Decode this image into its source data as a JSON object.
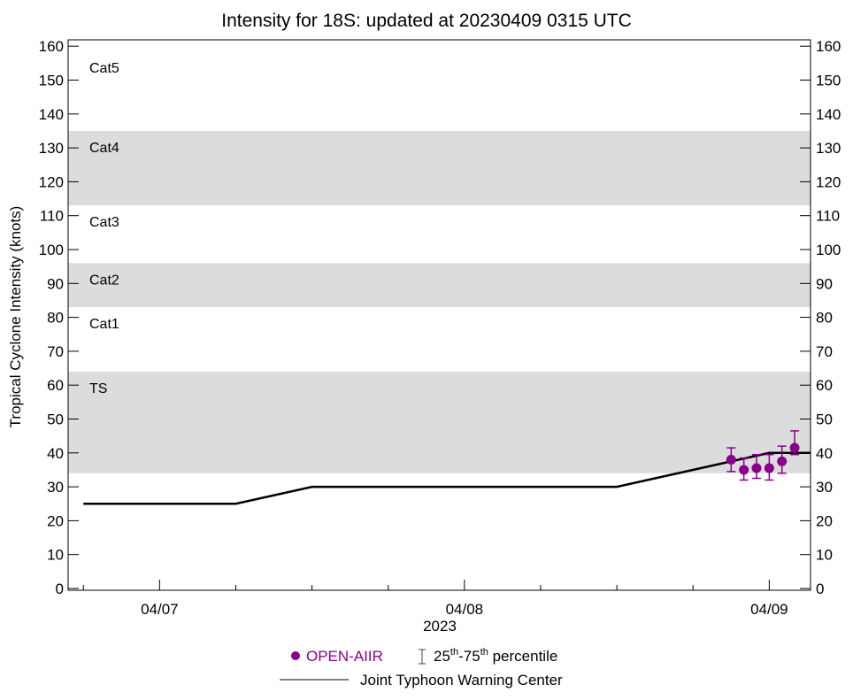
{
  "chart_data": {
    "type": "scatter",
    "title": "Intensity for 18S: updated at 20230409 0315 UTC",
    "ylabel": "Tropical Cyclone Intensity (knots)",
    "xlabel": "2023",
    "ylim": [
      0,
      160
    ],
    "xlim": [
      "2023-04-06T16:48",
      "2023-04-09T03:15"
    ],
    "yticks": [
      0,
      10,
      20,
      30,
      40,
      50,
      60,
      70,
      80,
      90,
      100,
      110,
      120,
      130,
      140,
      150,
      160
    ],
    "xticks": [
      {
        "label": "04/07",
        "t": "2023-04-07T00:00"
      },
      {
        "label": "04/08",
        "t": "2023-04-08T00:00"
      },
      {
        "label": "04/09",
        "t": "2023-04-09T00:00"
      }
    ],
    "bands": [
      {
        "label": "TS",
        "from": 34,
        "to": 64,
        "shaded": true
      },
      {
        "label": "Cat1",
        "from": 64,
        "to": 83,
        "shaded": false
      },
      {
        "label": "Cat2",
        "from": 83,
        "to": 96,
        "shaded": true
      },
      {
        "label": "Cat3",
        "from": 96,
        "to": 113,
        "shaded": false
      },
      {
        "label": "Cat4",
        "from": 113,
        "to": 135,
        "shaded": true
      },
      {
        "label": "Cat5",
        "from": 135,
        "to": 160,
        "shaded": false
      }
    ],
    "series": [
      {
        "name": "OPEN-AIIR",
        "color": "#8b008b",
        "type": "scatter",
        "points": [
          {
            "t": "2023-04-08T21:00",
            "y": 38,
            "p25": 34.5,
            "p75": 41.5
          },
          {
            "t": "2023-04-08T22:00",
            "y": 35,
            "p25": 32,
            "p75": 38.5
          },
          {
            "t": "2023-04-08T23:00",
            "y": 35.5,
            "p25": 32.5,
            "p75": 39.5
          },
          {
            "t": "2023-04-09T00:00",
            "y": 35.5,
            "p25": 32,
            "p75": 39.5
          },
          {
            "t": "2023-04-09T01:00",
            "y": 37.5,
            "p25": 34,
            "p75": 42
          },
          {
            "t": "2023-04-09T02:00",
            "y": 41.5,
            "p25": 39.5,
            "p75": 46.5
          }
        ]
      },
      {
        "name": "Joint Typhoon Warning Center",
        "color": "#000000",
        "type": "line",
        "points": [
          {
            "t": "2023-04-06T18:00",
            "y": 25
          },
          {
            "t": "2023-04-07T06:00",
            "y": 25
          },
          {
            "t": "2023-04-07T12:00",
            "y": 30
          },
          {
            "t": "2023-04-08T12:00",
            "y": 30
          },
          {
            "t": "2023-04-09T00:00",
            "y": 40
          },
          {
            "t": "2023-04-09T03:15",
            "y": 40
          }
        ]
      }
    ],
    "legend": {
      "placement": "bottom",
      "percentile_label": "25th-75th percentile",
      "sup": "th",
      "pct_a": "25",
      "pct_b": "-75",
      "pct_c": " percentile"
    }
  }
}
